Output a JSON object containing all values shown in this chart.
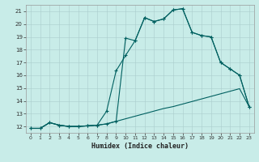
{
  "xlabel": "Humidex (Indice chaleur)",
  "xlim": [
    -0.5,
    23.5
  ],
  "ylim": [
    11.5,
    21.5
  ],
  "xticks": [
    0,
    1,
    2,
    3,
    4,
    5,
    6,
    7,
    8,
    9,
    10,
    11,
    12,
    13,
    14,
    15,
    16,
    17,
    18,
    19,
    20,
    21,
    22,
    23
  ],
  "yticks": [
    12,
    13,
    14,
    15,
    16,
    17,
    18,
    19,
    20,
    21
  ],
  "background_color": "#c8ece8",
  "grid_color": "#aacccc",
  "line_color": "#006060",
  "line1_x": [
    0,
    1,
    2,
    3,
    4,
    5,
    6,
    7,
    8,
    9,
    10,
    11,
    12,
    13,
    14,
    15,
    16,
    17,
    18,
    19,
    20,
    21,
    22,
    23
  ],
  "line1_y": [
    11.85,
    11.85,
    12.3,
    12.1,
    12.0,
    12.0,
    12.05,
    12.1,
    12.2,
    12.4,
    12.6,
    12.8,
    13.0,
    13.2,
    13.4,
    13.55,
    13.75,
    13.95,
    14.15,
    14.35,
    14.55,
    14.75,
    14.95,
    13.55
  ],
  "line2_x": [
    0,
    1,
    2,
    3,
    4,
    5,
    6,
    7,
    8,
    9,
    10,
    11,
    12,
    13,
    14,
    15,
    16,
    17,
    18,
    19,
    20,
    21,
    22,
    23
  ],
  "line2_y": [
    11.85,
    11.85,
    12.3,
    12.1,
    12.0,
    12.0,
    12.05,
    12.1,
    12.2,
    12.4,
    18.9,
    18.7,
    20.5,
    20.2,
    20.4,
    21.1,
    21.2,
    19.35,
    19.1,
    19.0,
    17.0,
    16.5,
    16.0,
    13.55
  ],
  "line3_x": [
    0,
    1,
    2,
    3,
    4,
    5,
    6,
    7,
    8,
    9,
    10,
    11,
    12,
    13,
    14,
    15,
    16,
    17,
    18,
    19,
    20,
    21,
    22,
    23
  ],
  "line3_y": [
    11.85,
    11.85,
    12.3,
    12.1,
    12.0,
    12.0,
    12.05,
    12.1,
    13.2,
    16.35,
    17.55,
    18.7,
    20.5,
    20.2,
    20.4,
    21.1,
    21.2,
    19.35,
    19.1,
    19.0,
    17.0,
    16.5,
    16.0,
    13.55
  ]
}
